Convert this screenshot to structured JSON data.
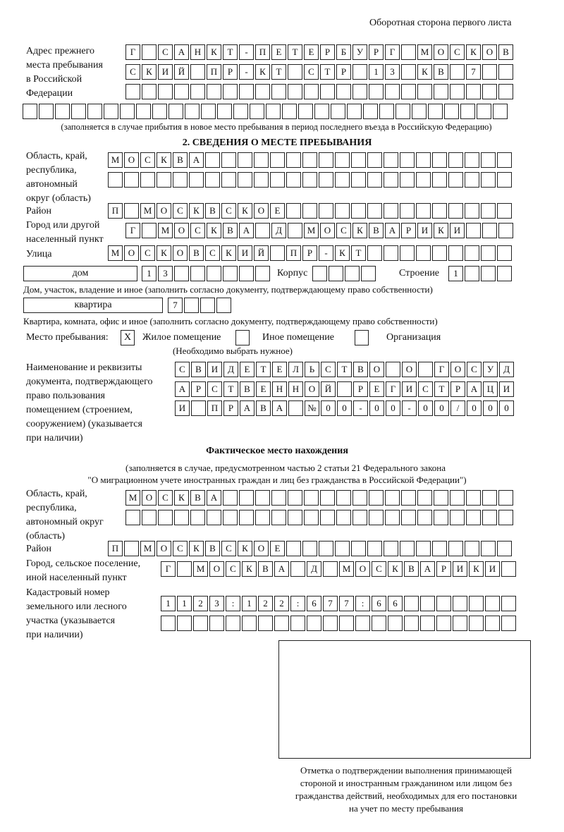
{
  "header": "Оборотная сторона первого листа",
  "prev_address": {
    "label": [
      "Адрес прежнего",
      "места пребывания",
      "в Российской",
      "Федерации"
    ],
    "rows": [
      [
        "Г",
        "",
        "С",
        "А",
        "Н",
        "К",
        "Т",
        "-",
        "П",
        "Е",
        "Т",
        "Е",
        "Р",
        "Б",
        "У",
        "Р",
        "Г",
        "",
        "М",
        "О",
        "С",
        "К",
        "О",
        "В"
      ],
      [
        "С",
        "К",
        "И",
        "Й",
        "",
        "П",
        "Р",
        "-",
        "К",
        "Т",
        "",
        "С",
        "Т",
        "Р",
        "",
        "1",
        "3",
        "",
        "К",
        "В",
        "",
        "7",
        "",
        ""
      ],
      [
        "",
        "",
        "",
        "",
        "",
        "",
        "",
        "",
        "",
        "",
        "",
        "",
        "",
        "",
        "",
        "",
        "",
        "",
        "",
        "",
        "",
        "",
        "",
        ""
      ],
      [
        "",
        "",
        "",
        "",
        "",
        "",
        "",
        "",
        "",
        "",
        "",
        "",
        "",
        "",
        "",
        "",
        "",
        "",
        "",
        "",
        "",
        "",
        "",
        "",
        "",
        "",
        "",
        "",
        "",
        ""
      ]
    ],
    "note": "(заполняется в случае прибытия в новое место пребывания в период последнего въезда в Российскую Федерацию)"
  },
  "section2": {
    "title": "2. СВЕДЕНИЯ О МЕСТЕ ПРЕБЫВАНИЯ",
    "region_label": [
      "Область, край,",
      "республика,",
      "автономный",
      "округ (область)"
    ],
    "region_rows": [
      [
        "М",
        "О",
        "С",
        "К",
        "В",
        "А",
        "",
        "",
        "",
        "",
        "",
        "",
        "",
        "",
        "",
        "",
        "",
        "",
        "",
        "",
        "",
        "",
        "",
        "",
        ""
      ],
      [
        "",
        "",
        "",
        "",
        "",
        "",
        "",
        "",
        "",
        "",
        "",
        "",
        "",
        "",
        "",
        "",
        "",
        "",
        "",
        "",
        "",
        "",
        "",
        "",
        ""
      ]
    ],
    "district_label": "Район",
    "district_row": [
      "П",
      "",
      "М",
      "О",
      "С",
      "К",
      "В",
      "С",
      "К",
      "О",
      "Е",
      "",
      "",
      "",
      "",
      "",
      "",
      "",
      "",
      "",
      "",
      "",
      "",
      "",
      ""
    ],
    "city_label": [
      "Город или другой",
      "населенный пункт"
    ],
    "city_row": [
      "Г",
      "",
      "М",
      "О",
      "С",
      "К",
      "В",
      "А",
      "",
      "Д",
      "",
      "М",
      "О",
      "С",
      "К",
      "В",
      "А",
      "Р",
      "И",
      "К",
      "И",
      "",
      "",
      ""
    ],
    "street_label": "Улица",
    "street_row": [
      "М",
      "О",
      "С",
      "К",
      "О",
      "В",
      "С",
      "К",
      "И",
      "Й",
      "",
      "П",
      "Р",
      "-",
      "К",
      "Т",
      "",
      "",
      "",
      "",
      "",
      "",
      "",
      "",
      ""
    ],
    "house_type": "дом",
    "house_cells": [
      "1",
      "3",
      "",
      "",
      "",
      "",
      "",
      ""
    ],
    "korpus_label": "Корпус",
    "korpus_cells": [
      "",
      "",
      "",
      ""
    ],
    "building_label": "Строение",
    "building_cells": [
      "1",
      "",
      "",
      ""
    ],
    "house_note": "Дом, участок, владение и иное (заполнить согласно документу, подтверждающему право собственности)",
    "flat_type": "квартира",
    "flat_cells": [
      "7",
      "",
      "",
      ""
    ],
    "flat_note": "Квартира, комната, офис и иное (заполнить согласно документу, подтверждающему право собственности)",
    "stay_label": "Место пребывания:",
    "stay_options": [
      {
        "label": "Жилое помещение",
        "mark": "X"
      },
      {
        "label": "Иное помещение",
        "mark": ""
      },
      {
        "label": "Организация",
        "mark": ""
      }
    ],
    "stay_hint": "(Необходимо выбрать нужное)",
    "doc_label": [
      "Наименование и реквизиты",
      "документа, подтверждающего",
      "право пользования",
      "помещением (строением,",
      "сооружением) (указывается",
      "при наличии)"
    ],
    "doc_rows": [
      [
        "С",
        "В",
        "И",
        "Д",
        "Е",
        "Т",
        "Е",
        "Л",
        "Ь",
        "С",
        "Т",
        "В",
        "О",
        "",
        "О",
        "",
        "Г",
        "О",
        "С",
        "У",
        "Д"
      ],
      [
        "А",
        "Р",
        "С",
        "Т",
        "В",
        "Е",
        "Н",
        "Н",
        "О",
        "Й",
        "",
        "Р",
        "Е",
        "Г",
        "И",
        "С",
        "Т",
        "Р",
        "А",
        "Ц",
        "И"
      ],
      [
        "И",
        "",
        "П",
        "Р",
        "А",
        "В",
        "А",
        "",
        "№",
        "0",
        "0",
        "-",
        "0",
        "0",
        "-",
        "0",
        "0",
        "/",
        "0",
        "0",
        "0"
      ]
    ]
  },
  "actual": {
    "title": "Фактическое место нахождения",
    "subtitle": [
      "(заполняется в случае, предусмотренном частью 2 статьи 21 Федерального закона",
      "\"О миграционном учете иностранных граждан и лиц без гражданства в Российской Федерации\")"
    ],
    "region_label": [
      "Область, край,",
      "республика,",
      "автономный округ",
      "(область)"
    ],
    "region_rows": [
      [
        "М",
        "О",
        "С",
        "К",
        "В",
        "А",
        "",
        "",
        "",
        "",
        "",
        "",
        "",
        "",
        "",
        "",
        "",
        "",
        "",
        "",
        "",
        "",
        "",
        ""
      ],
      [
        "",
        "",
        "",
        "",
        "",
        "",
        "",
        "",
        "",
        "",
        "",
        "",
        "",
        "",
        "",
        "",
        "",
        "",
        "",
        "",
        "",
        "",
        "",
        ""
      ]
    ],
    "district_label": "Район",
    "district_row": [
      "П",
      "",
      "М",
      "О",
      "С",
      "К",
      "В",
      "С",
      "К",
      "О",
      "Е",
      "",
      "",
      "",
      "",
      "",
      "",
      "",
      "",
      "",
      "",
      "",
      "",
      "",
      ""
    ],
    "city_label": [
      "Город, сельское поселение,",
      "иной населенный пункт"
    ],
    "city_row": [
      "Г",
      "",
      "М",
      "О",
      "С",
      "К",
      "В",
      "А",
      "",
      "Д",
      "",
      "М",
      "О",
      "С",
      "К",
      "В",
      "А",
      "Р",
      "И",
      "К",
      "И",
      ""
    ],
    "cadastral_label": [
      "Кадастровый номер",
      "земельного или лесного",
      "участка (указывается",
      "при наличии)"
    ],
    "cadastral_rows": [
      [
        "1",
        "1",
        "2",
        "3",
        ":",
        "1",
        "2",
        "2",
        ":",
        "6",
        "7",
        "7",
        ":",
        "6",
        "6",
        "",
        "",
        "",
        "",
        "",
        "",
        ""
      ],
      [
        "",
        "",
        "",
        "",
        "",
        "",
        "",
        "",
        "",
        "",
        "",
        "",
        "",
        "",
        "",
        "",
        "",
        "",
        "",
        "",
        "",
        ""
      ]
    ]
  },
  "stamp_caption": [
    "Отметка о подтверждении выполнения принимающей",
    "стороной и иностранным гражданином или лицом без",
    "гражданства действий, необходимых для его постановки",
    "на учет по месту пребывания"
  ]
}
